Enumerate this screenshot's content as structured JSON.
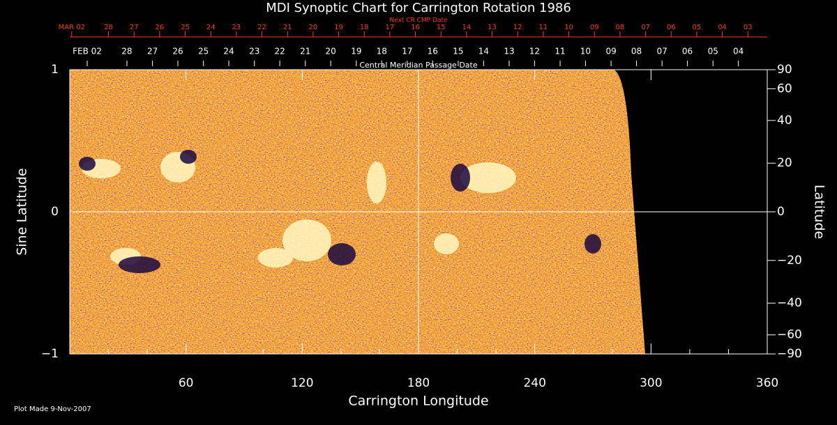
{
  "chart_data": {
    "type": "synoptic-map",
    "title": "MDI Synoptic Chart for Carrington Rotation 1986",
    "xlabel": "Carrington Longitude",
    "ylabel": "Sine Latitude",
    "y2label": "Latitude",
    "footnote": "Plot Made  9-Nov-2007",
    "xlim": [
      0,
      360
    ],
    "xticks": [
      60,
      120,
      180,
      240,
      300,
      360
    ],
    "xminorticks": [
      20,
      40,
      80,
      100,
      140,
      160,
      200,
      220,
      260,
      280,
      320,
      340
    ],
    "ylim": [
      -1,
      1
    ],
    "yticks": [
      {
        "value": -1,
        "label": "−1"
      },
      0,
      1
    ],
    "y2lim": [
      -90,
      90
    ],
    "y2scale": "sine",
    "y2ticks": [
      90,
      60,
      40,
      20,
      0,
      {
        "value": -20,
        "label": "−20"
      },
      {
        "value": -40,
        "label": "−40"
      },
      {
        "value": -60,
        "label": "−60"
      },
      {
        "value": -90,
        "label": "−90"
      }
    ],
    "crosshair": {
      "x": 180,
      "y": 0
    },
    "top_axis": {
      "label": "Next CR CMP Date",
      "color": "#ff3a1a",
      "ticks": [
        {
          "value": 1,
          "label": "MAR 02"
        },
        {
          "value": 20,
          "label": "28"
        },
        {
          "value": 33.2,
          "label": "27"
        },
        {
          "value": 46.4,
          "label": "26"
        },
        {
          "value": 59.6,
          "label": "25"
        },
        {
          "value": 72.8,
          "label": "24"
        },
        {
          "value": 86,
          "label": "23"
        },
        {
          "value": 99.2,
          "label": "22"
        },
        {
          "value": 112.4,
          "label": "21"
        },
        {
          "value": 125.6,
          "label": "20"
        },
        {
          "value": 138.8,
          "label": "19"
        },
        {
          "value": 152,
          "label": "18"
        },
        {
          "value": 165.2,
          "label": "17"
        },
        {
          "value": 178.4,
          "label": "16"
        },
        {
          "value": 191.6,
          "label": "15"
        },
        {
          "value": 204.8,
          "label": "14"
        },
        {
          "value": 218,
          "label": "13"
        },
        {
          "value": 231.2,
          "label": "12"
        },
        {
          "value": 244.4,
          "label": "11"
        },
        {
          "value": 257.6,
          "label": "10"
        },
        {
          "value": 270.8,
          "label": "09"
        },
        {
          "value": 284,
          "label": "08"
        },
        {
          "value": 297.2,
          "label": "07"
        },
        {
          "value": 310.4,
          "label": "06"
        },
        {
          "value": 323.6,
          "label": "05"
        },
        {
          "value": 336.8,
          "label": "04"
        },
        {
          "value": 350,
          "label": "03"
        }
      ]
    },
    "date_axis": {
      "label": "Central Meridian Passage Date",
      "color": "#ffffff",
      "ticks": [
        {
          "value": 9,
          "label": "FEB 02"
        },
        {
          "value": 29.5,
          "label": "28"
        },
        {
          "value": 42.7,
          "label": "27"
        },
        {
          "value": 55.8,
          "label": "26"
        },
        {
          "value": 69.0,
          "label": "25"
        },
        {
          "value": 82.1,
          "label": "24"
        },
        {
          "value": 95.3,
          "label": "23"
        },
        {
          "value": 108.4,
          "label": "22"
        },
        {
          "value": 121.6,
          "label": "21"
        },
        {
          "value": 134.7,
          "label": "20"
        },
        {
          "value": 147.9,
          "label": "19"
        },
        {
          "value": 161.0,
          "label": "18"
        },
        {
          "value": 174.2,
          "label": "17"
        },
        {
          "value": 187.3,
          "label": "16"
        },
        {
          "value": 200.5,
          "label": "15"
        },
        {
          "value": 213.6,
          "label": "14"
        },
        {
          "value": 226.8,
          "label": "13"
        },
        {
          "value": 239.9,
          "label": "12"
        },
        {
          "value": 253.1,
          "label": "11"
        },
        {
          "value": 266.2,
          "label": "10"
        },
        {
          "value": 279.4,
          "label": "09"
        },
        {
          "value": 292.5,
          "label": "08"
        },
        {
          "value": 305.7,
          "label": "07"
        },
        {
          "value": 318.8,
          "label": "06"
        },
        {
          "value": 332.0,
          "label": "05"
        },
        {
          "value": 345.1,
          "label": "04"
        }
      ]
    }
  }
}
